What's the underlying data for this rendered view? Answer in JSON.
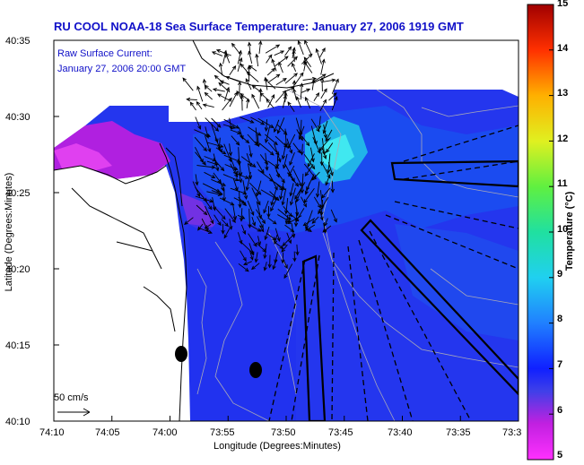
{
  "header": {
    "title": "RU COOL  NOAA-18  Sea Surface Temperature:  January 27, 2006 1919 GMT",
    "current_label": "Raw Surface Current:",
    "current_time": "January 27, 2006 20:00 GMT"
  },
  "axes": {
    "xlabel": "Longitude (Degrees:Minutes)",
    "ylabel": "Latitude (Degrees:Minutes)",
    "x_ticks": [
      "74:10",
      "74:05",
      "74:00",
      "73:55",
      "73:50",
      "73:45",
      "73:40",
      "73:35",
      "73:3"
    ],
    "y_ticks": [
      "40:35",
      "40:30",
      "40:25",
      "40:20",
      "40:15",
      "40:10"
    ]
  },
  "scale": {
    "label": "50 cm/s"
  },
  "colorbar": {
    "label": "Temperature (°C)",
    "ticks": [
      "15",
      "14",
      "13",
      "12",
      "11",
      "10",
      "9",
      "8",
      "7",
      "6",
      "5"
    ],
    "min": 5,
    "max": 15
  },
  "colors": {
    "title": "#1010c8",
    "land": "#ffffff",
    "sea_base": "#2436ee",
    "track": "#000000"
  }
}
